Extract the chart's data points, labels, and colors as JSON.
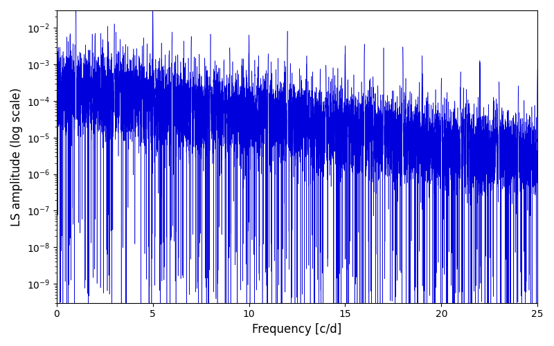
{
  "xlabel": "Frequency [c/d]",
  "ylabel": "LS amplitude (log scale)",
  "line_color": "#0000dd",
  "xlim": [
    0,
    25
  ],
  "ylim": [
    3e-10,
    0.03
  ],
  "freq_max": 25,
  "n_points": 15000,
  "seed": 7,
  "figsize": [
    8.0,
    5.0
  ],
  "dpi": 100,
  "linewidth": 0.4
}
